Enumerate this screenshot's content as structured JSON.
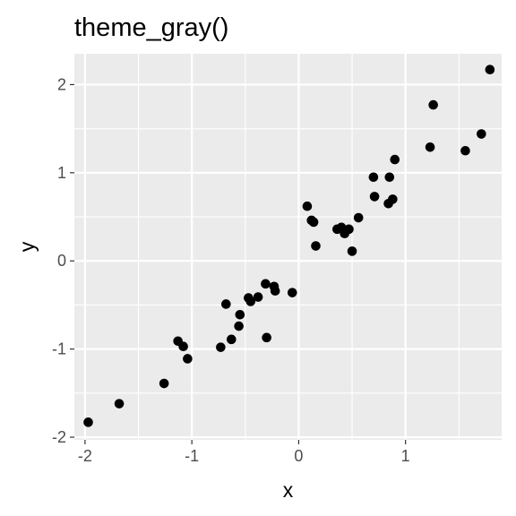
{
  "chart_data": {
    "type": "scatter",
    "title": "theme_gray()",
    "xlabel": "x",
    "ylabel": "y",
    "xlim": [
      -2.1,
      1.9
    ],
    "ylim": [
      -2.03,
      2.35
    ],
    "x_ticks": [
      -2,
      -1,
      0,
      1
    ],
    "y_ticks": [
      -2,
      -1,
      0,
      1,
      2
    ],
    "x_tick_labels": [
      "-2",
      "-1",
      "0",
      "1"
    ],
    "y_tick_labels": [
      "-2",
      "-1",
      "0",
      "1",
      "2"
    ],
    "grid": true,
    "colors": {
      "panel": "#ebebeb",
      "grid": "#ffffff",
      "point": "#000000",
      "tick_text": "#4d4d4d"
    },
    "points": [
      {
        "x": -1.97,
        "y": -1.83
      },
      {
        "x": -1.68,
        "y": -1.62
      },
      {
        "x": -1.26,
        "y": -1.39
      },
      {
        "x": -1.13,
        "y": -0.91
      },
      {
        "x": -1.08,
        "y": -0.97
      },
      {
        "x": -1.04,
        "y": -1.11
      },
      {
        "x": -0.73,
        "y": -0.98
      },
      {
        "x": -0.68,
        "y": -0.49
      },
      {
        "x": -0.63,
        "y": -0.89
      },
      {
        "x": -0.56,
        "y": -0.74
      },
      {
        "x": -0.55,
        "y": -0.61
      },
      {
        "x": -0.47,
        "y": -0.42
      },
      {
        "x": -0.45,
        "y": -0.46
      },
      {
        "x": -0.38,
        "y": -0.41
      },
      {
        "x": -0.31,
        "y": -0.26
      },
      {
        "x": -0.3,
        "y": -0.87
      },
      {
        "x": -0.23,
        "y": -0.29
      },
      {
        "x": -0.22,
        "y": -0.34
      },
      {
        "x": -0.06,
        "y": -0.36
      },
      {
        "x": 0.08,
        "y": 0.62
      },
      {
        "x": 0.12,
        "y": 0.46
      },
      {
        "x": 0.14,
        "y": 0.44
      },
      {
        "x": 0.16,
        "y": 0.17
      },
      {
        "x": 0.36,
        "y": 0.36
      },
      {
        "x": 0.4,
        "y": 0.38
      },
      {
        "x": 0.43,
        "y": 0.31
      },
      {
        "x": 0.47,
        "y": 0.36
      },
      {
        "x": 0.5,
        "y": 0.11
      },
      {
        "x": 0.56,
        "y": 0.49
      },
      {
        "x": 0.7,
        "y": 0.95
      },
      {
        "x": 0.71,
        "y": 0.73
      },
      {
        "x": 0.84,
        "y": 0.65
      },
      {
        "x": 0.85,
        "y": 0.95
      },
      {
        "x": 0.88,
        "y": 0.7
      },
      {
        "x": 0.9,
        "y": 1.15
      },
      {
        "x": 1.23,
        "y": 1.29
      },
      {
        "x": 1.26,
        "y": 1.77
      },
      {
        "x": 1.56,
        "y": 1.25
      },
      {
        "x": 1.71,
        "y": 1.44
      },
      {
        "x": 1.79,
        "y": 2.17
      }
    ]
  }
}
